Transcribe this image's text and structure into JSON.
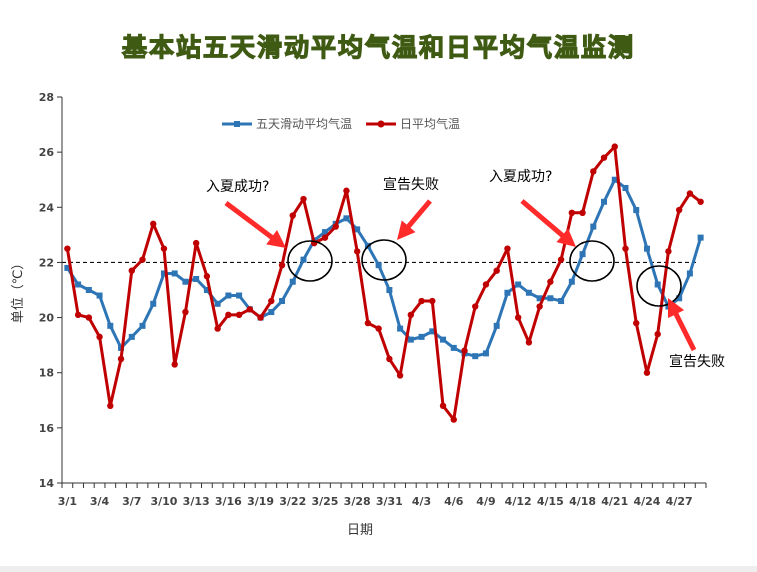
{
  "chart_data": {
    "type": "line",
    "title": "基本站五天滑动平均气温和日平均气温监测",
    "xlabel": "日期",
    "ylabel": "单位（℃）",
    "ylim": [
      14,
      28
    ],
    "yticks": [
      14,
      16,
      18,
      20,
      22,
      24,
      26,
      28
    ],
    "xtick_labels": [
      "3/1",
      "3/4",
      "3/7",
      "3/10",
      "3/13",
      "3/16",
      "3/19",
      "3/22",
      "3/25",
      "3/28",
      "3/31",
      "4/3",
      "4/6",
      "4/9",
      "4/12",
      "4/15",
      "4/18",
      "4/21",
      "4/24",
      "4/27"
    ],
    "threshold": 22,
    "legend_position": "top-left",
    "series": [
      {
        "name": "五天滑动平均气温",
        "color": "#2e75b6",
        "marker": "square",
        "values": [
          21.8,
          21.2,
          21.0,
          20.8,
          19.7,
          18.9,
          19.3,
          19.7,
          20.5,
          21.6,
          21.6,
          21.3,
          21.4,
          21.0,
          20.5,
          20.8,
          20.8,
          20.3,
          20.0,
          20.2,
          20.6,
          21.3,
          22.1,
          22.8,
          23.1,
          23.4,
          23.6,
          23.2,
          22.6,
          21.9,
          21.0,
          19.6,
          19.2,
          19.3,
          19.5,
          19.2,
          18.9,
          18.7,
          18.6,
          18.7,
          19.7,
          20.9,
          21.2,
          20.9,
          20.7,
          20.7,
          20.6,
          21.3,
          22.3,
          23.3,
          24.2,
          25.0,
          24.7,
          23.9,
          22.5,
          21.2,
          20.4,
          20.7,
          21.6,
          22.9
        ]
      },
      {
        "name": "日平均气温",
        "color": "#c00000",
        "marker": "circle",
        "values": [
          22.5,
          20.1,
          20.0,
          19.3,
          16.8,
          18.5,
          21.7,
          22.1,
          23.4,
          22.5,
          18.3,
          20.2,
          22.7,
          21.5,
          19.6,
          20.1,
          20.1,
          20.3,
          20.0,
          20.6,
          21.9,
          23.7,
          24.3,
          22.7,
          22.9,
          23.3,
          24.6,
          22.4,
          19.8,
          19.6,
          18.5,
          17.9,
          20.1,
          20.6,
          20.6,
          16.8,
          16.3,
          18.8,
          20.4,
          21.2,
          21.7,
          22.5,
          20.0,
          19.1,
          20.4,
          21.3,
          22.1,
          23.8,
          23.8,
          25.3,
          25.8,
          26.2,
          22.5,
          19.8,
          18.0,
          19.4,
          22.4,
          23.9,
          24.5,
          24.2
        ]
      }
    ],
    "annotations": [
      {
        "text": "入夏成功?",
        "x": 22,
        "y": 25.5
      },
      {
        "text": "宣告失败",
        "x": 33,
        "y": 25.5
      },
      {
        "text": "入夏成功?",
        "x": 48,
        "y": 25.8
      },
      {
        "text": "宣告失败",
        "x": 63,
        "y": 18.3
      }
    ]
  }
}
